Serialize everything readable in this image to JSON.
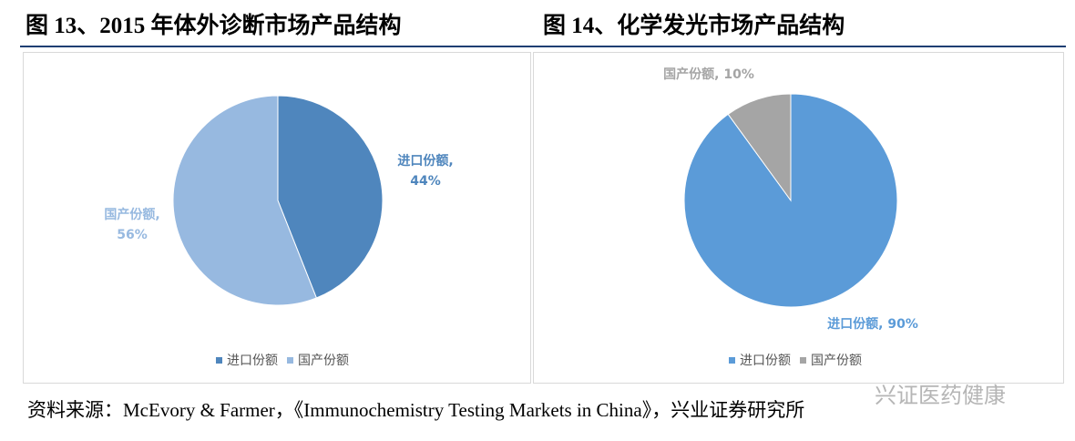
{
  "chart_data": [
    {
      "type": "pie",
      "title": "图 13、2015 年体外诊断市场产品结构",
      "categories": [
        "进口份额",
        "国产份额"
      ],
      "values": [
        44,
        56
      ],
      "value_labels": [
        "进口份额,\n44%",
        "国产份额,\n56%"
      ],
      "colors": [
        "#4f86bd",
        "#97b9e0"
      ],
      "legend": "bottom"
    },
    {
      "type": "pie",
      "title": "图 14、化学发光市场产品结构",
      "categories": [
        "进口份额",
        "国产份额"
      ],
      "values": [
        90,
        10
      ],
      "value_labels": [
        "进口份额, 90%",
        "国产份额, 10%"
      ],
      "colors": [
        "#5b9bd8",
        "#a5a5a5"
      ],
      "legend": "bottom"
    }
  ],
  "source": "资料来源：McEvory & Farmer，《Immunochemistry Testing Markets in China》，兴业证券研究所",
  "watermark": "兴证医药健康"
}
